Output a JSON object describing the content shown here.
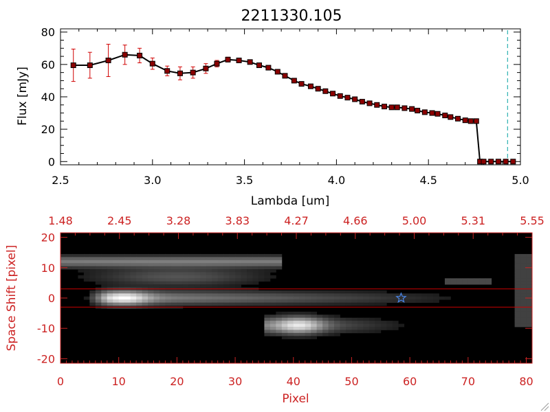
{
  "chart_data": [
    {
      "type": "line",
      "title": "2211330.105",
      "xlabel": "Lambda [um]",
      "ylabel": "Flux [mJy]",
      "xlim": [
        2.5,
        5.0
      ],
      "ylim": [
        -2,
        82
      ],
      "x_ticks": [
        "2.5",
        "3.0",
        "3.5",
        "4.0",
        "4.5",
        "5.0"
      ],
      "y_ticks": [
        "0",
        "20",
        "40",
        "60",
        "80"
      ],
      "colors": {
        "line": "#000000",
        "marker": "#8b0000",
        "errorbar": "#d00000",
        "cutoff_line": "#00a0a0"
      },
      "cutoff_x": 4.93,
      "series": [
        {
          "x": [
            2.57,
            2.66,
            2.76,
            2.85,
            2.93,
            3.0,
            3.08,
            3.15,
            3.22,
            3.29,
            3.35,
            3.41,
            3.47,
            3.53,
            3.58,
            3.63,
            3.68,
            3.72,
            3.77,
            3.81,
            3.86,
            3.9,
            3.94,
            3.98,
            4.02,
            4.06,
            4.1,
            4.14,
            4.18,
            4.22,
            4.26,
            4.3,
            4.33,
            4.37,
            4.41,
            4.44,
            4.48,
            4.52,
            4.55,
            4.59,
            4.62,
            4.66,
            4.7,
            4.73,
            4.76,
            4.78,
            4.8,
            4.84,
            4.88,
            4.92,
            4.96
          ],
          "y": [
            59.5,
            59.5,
            62.5,
            66,
            65.5,
            60.5,
            56,
            54.5,
            55,
            57.5,
            60.5,
            63,
            62.5,
            61.5,
            59.5,
            58,
            55.5,
            53,
            50,
            48,
            46.5,
            45,
            43.5,
            42,
            40.5,
            39.5,
            38.5,
            37,
            36,
            35,
            34,
            33.5,
            33.5,
            33,
            32.5,
            31.5,
            30.5,
            30,
            29.5,
            28.5,
            27.5,
            26.5,
            25.5,
            25,
            25,
            0,
            0,
            0,
            0,
            0,
            0
          ],
          "err": [
            10,
            8,
            10,
            6,
            4.5,
            3.5,
            3,
            4,
            3.5,
            3,
            2,
            1.5,
            1,
            0.8,
            0.8,
            0.8,
            0.8,
            0.8,
            0.8,
            0.8,
            0.8,
            0.8,
            0.8,
            0.8,
            0.8,
            0.8,
            0.8,
            0.8,
            0.8,
            0.8,
            0.8,
            0.8,
            0.8,
            0.8,
            0.8,
            0.8,
            0.8,
            0.8,
            0.8,
            0.8,
            0.8,
            0.8,
            0.8,
            0.8,
            0.8,
            0,
            0,
            0,
            0,
            0,
            0
          ]
        }
      ]
    },
    {
      "type": "heatmap",
      "xlabel": "Pixel",
      "ylabel": "Space Shift [pixel]",
      "xlim": [
        0,
        81
      ],
      "ylim": [
        -21.5,
        21.5
      ],
      "x_ticks": [
        "0",
        "10",
        "20",
        "30",
        "40",
        "50",
        "60",
        "70",
        "80"
      ],
      "y_ticks": [
        "-20",
        "-10",
        "0",
        "10",
        "20"
      ],
      "top_axis_ticks": [
        "1.48",
        "2.45",
        "3.28",
        "3.83",
        "4.27",
        "4.66",
        "5.00",
        "5.31",
        "5.55"
      ],
      "aperture_lines_y": [
        3,
        -3
      ],
      "star_marker": {
        "x": 58.5,
        "y": 0
      },
      "colors": {
        "axis": "#cc2222",
        "aperture": "#cc0000",
        "star": "#4a86e8",
        "background": "#000000"
      },
      "sources": [
        {
          "label": "primary trace",
          "x_start": 6,
          "x_end": 72,
          "y": 0
        },
        {
          "label": "secondary trace",
          "x_start": 36,
          "x_end": 62,
          "y": -9
        }
      ]
    }
  ]
}
